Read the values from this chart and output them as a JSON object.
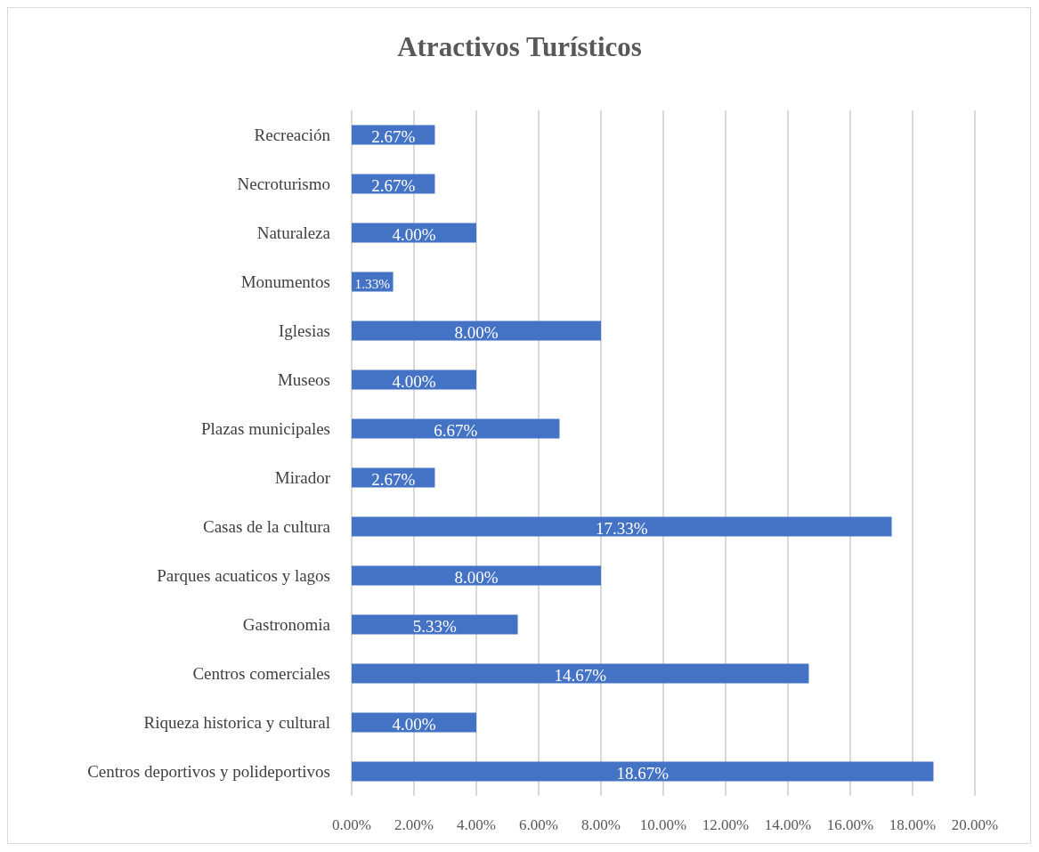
{
  "chart_data": {
    "type": "bar",
    "orientation": "horizontal",
    "title": "Atractivos Turísticos",
    "categories": [
      "Recreación",
      "Necroturismo",
      "Naturaleza",
      "Monumentos",
      "Iglesias",
      "Museos",
      "Plazas municipales",
      "Mirador",
      "Casas de la cultura",
      "Parques acuaticos y lagos",
      "Gastronomia",
      "Centros comerciales",
      "Riqueza historica y cultural",
      "Centros deportivos y polideportivos"
    ],
    "values": [
      2.67,
      2.67,
      4.0,
      1.33,
      8.0,
      4.0,
      6.67,
      2.67,
      17.33,
      8.0,
      5.33,
      14.67,
      4.0,
      18.67
    ],
    "value_labels": [
      "2.67%",
      "2.67%",
      "4.00%",
      "1.33%",
      "8.00%",
      "4.00%",
      "6.67%",
      "2.67%",
      "17.33%",
      "8.00%",
      "5.33%",
      "14.67%",
      "4.00%",
      "18.67%"
    ],
    "color": "#4472c4",
    "xlim": [
      0,
      20
    ],
    "xticks": [
      {
        "value": 0,
        "label": "0.00%"
      },
      {
        "value": 2,
        "label": "2.00%"
      },
      {
        "value": 4,
        "label": "4.00%"
      },
      {
        "value": 6,
        "label": "6.00%"
      },
      {
        "value": 8,
        "label": "8.00%"
      },
      {
        "value": 10,
        "label": "10.00%"
      },
      {
        "value": 12,
        "label": "12.00%"
      },
      {
        "value": 14,
        "label": "14.00%"
      },
      {
        "value": 16,
        "label": "16.00%"
      },
      {
        "value": 18,
        "label": "18.00%"
      },
      {
        "value": 20,
        "label": "20.00%"
      }
    ],
    "grid": "x"
  }
}
